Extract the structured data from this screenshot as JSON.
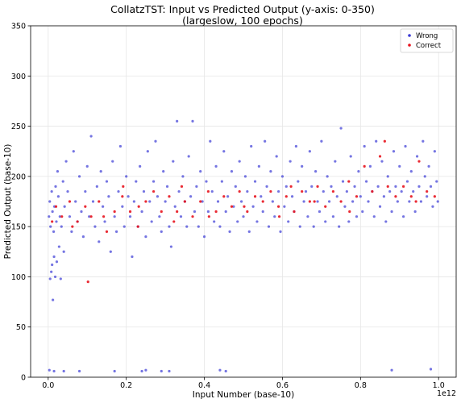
{
  "chart_data": {
    "type": "scatter",
    "title": "CollatzTST: Input vs Predicted Output (y-axis: 0-350)",
    "subtitle": "(largeslow, 100 epochs)",
    "xlabel": "Input Number (base-10)",
    "ylabel": "Predicted Output (base-10)",
    "x_offset_label": "1e12",
    "xlim": [
      -0.045,
      1.045
    ],
    "ylim": [
      0,
      350
    ],
    "x_ticks": [
      0.0,
      0.2,
      0.4,
      0.6,
      0.8,
      1.0
    ],
    "x_tick_labels": [
      "0.0",
      "0.2",
      "0.4",
      "0.6",
      "0.8",
      "1.0"
    ],
    "y_ticks": [
      0,
      50,
      100,
      150,
      200,
      250,
      300,
      350
    ],
    "y_tick_labels": [
      "0",
      "50",
      "100",
      "150",
      "200",
      "250",
      "300",
      "350"
    ],
    "grid": true,
    "legend_position": "top-right",
    "series": [
      {
        "name": "Wrong",
        "color": "#3b3bd6",
        "points": [
          [
            0.005,
            98
          ],
          [
            0.008,
            105
          ],
          [
            0.01,
            112
          ],
          [
            0.012,
            77
          ],
          [
            0.015,
            120
          ],
          [
            0.018,
            100
          ],
          [
            0.022,
            115
          ],
          [
            0.028,
            130
          ],
          [
            0.032,
            98
          ],
          [
            0.04,
            125
          ],
          [
            0.002,
            160
          ],
          [
            0.004,
            175
          ],
          [
            0.006,
            150
          ],
          [
            0.009,
            185
          ],
          [
            0.011,
            165
          ],
          [
            0.014,
            145
          ],
          [
            0.016,
            170
          ],
          [
            0.019,
            190
          ],
          [
            0.021,
            155
          ],
          [
            0.024,
            205
          ],
          [
            0.026,
            180
          ],
          [
            0.03,
            160
          ],
          [
            0.034,
            150
          ],
          [
            0.038,
            195
          ],
          [
            0.042,
            170
          ],
          [
            0.046,
            215
          ],
          [
            0.05,
            185
          ],
          [
            0.055,
            160
          ],
          [
            0.06,
            145
          ],
          [
            0.065,
            225
          ],
          [
            0.07,
            175
          ],
          [
            0.075,
            155
          ],
          [
            0.08,
            200
          ],
          [
            0.085,
            165
          ],
          [
            0.09,
            140
          ],
          [
            0.095,
            185
          ],
          [
            0.1,
            210
          ],
          [
            0.105,
            160
          ],
          [
            0.11,
            240
          ],
          [
            0.115,
            175
          ],
          [
            0.12,
            150
          ],
          [
            0.125,
            190
          ],
          [
            0.13,
            135
          ],
          [
            0.135,
            205
          ],
          [
            0.14,
            170
          ],
          [
            0.145,
            155
          ],
          [
            0.15,
            195
          ],
          [
            0.155,
            180
          ],
          [
            0.16,
            125
          ],
          [
            0.165,
            215
          ],
          [
            0.17,
            160
          ],
          [
            0.175,
            145
          ],
          [
            0.18,
            185
          ],
          [
            0.185,
            230
          ],
          [
            0.19,
            170
          ],
          [
            0.195,
            150
          ],
          [
            0.2,
            200
          ],
          [
            0.205,
            180
          ],
          [
            0.21,
            160
          ],
          [
            0.215,
            120
          ],
          [
            0.22,
            175
          ],
          [
            0.225,
            195
          ],
          [
            0.23,
            150
          ],
          [
            0.235,
            210
          ],
          [
            0.24,
            165
          ],
          [
            0.245,
            185
          ],
          [
            0.25,
            140
          ],
          [
            0.255,
            225
          ],
          [
            0.26,
            175
          ],
          [
            0.265,
            155
          ],
          [
            0.27,
            195
          ],
          [
            0.275,
            235
          ],
          [
            0.28,
            180
          ],
          [
            0.285,
            160
          ],
          [
            0.29,
            145
          ],
          [
            0.295,
            205
          ],
          [
            0.3,
            175
          ],
          [
            0.305,
            190
          ],
          [
            0.31,
            150
          ],
          [
            0.315,
            130
          ],
          [
            0.32,
            215
          ],
          [
            0.325,
            170
          ],
          [
            0.33,
            255
          ],
          [
            0.335,
            185
          ],
          [
            0.34,
            160
          ],
          [
            0.345,
            200
          ],
          [
            0.35,
            175
          ],
          [
            0.355,
            150
          ],
          [
            0.36,
            220
          ],
          [
            0.365,
            180
          ],
          [
            0.37,
            255
          ],
          [
            0.375,
            165
          ],
          [
            0.38,
            190
          ],
          [
            0.385,
            150
          ],
          [
            0.39,
            205
          ],
          [
            0.395,
            175
          ],
          [
            0.4,
            140
          ],
          [
            0.405,
            195
          ],
          [
            0.41,
            165
          ],
          [
            0.415,
            235
          ],
          [
            0.42,
            185
          ],
          [
            0.425,
            155
          ],
          [
            0.43,
            210
          ],
          [
            0.435,
            175
          ],
          [
            0.44,
            150
          ],
          [
            0.445,
            195
          ],
          [
            0.45,
            225
          ],
          [
            0.455,
            165
          ],
          [
            0.46,
            180
          ],
          [
            0.465,
            145
          ],
          [
            0.47,
            205
          ],
          [
            0.475,
            170
          ],
          [
            0.48,
            190
          ],
          [
            0.485,
            155
          ],
          [
            0.49,
            215
          ],
          [
            0.495,
            175
          ],
          [
            0.5,
            160
          ],
          [
            0.505,
            200
          ],
          [
            0.51,
            185
          ],
          [
            0.515,
            145
          ],
          [
            0.52,
            230
          ],
          [
            0.525,
            170
          ],
          [
            0.53,
            195
          ],
          [
            0.535,
            155
          ],
          [
            0.54,
            210
          ],
          [
            0.545,
            180
          ],
          [
            0.55,
            165
          ],
          [
            0.555,
            235
          ],
          [
            0.56,
            190
          ],
          [
            0.565,
            150
          ],
          [
            0.57,
            205
          ],
          [
            0.575,
            175
          ],
          [
            0.58,
            160
          ],
          [
            0.585,
            220
          ],
          [
            0.59,
            185
          ],
          [
            0.595,
            145
          ],
          [
            0.6,
            200
          ],
          [
            0.605,
            170
          ],
          [
            0.61,
            190
          ],
          [
            0.615,
            155
          ],
          [
            0.62,
            215
          ],
          [
            0.625,
            180
          ],
          [
            0.63,
            165
          ],
          [
            0.635,
            230
          ],
          [
            0.64,
            195
          ],
          [
            0.645,
            150
          ],
          [
            0.65,
            210
          ],
          [
            0.655,
            175
          ],
          [
            0.66,
            185
          ],
          [
            0.665,
            160
          ],
          [
            0.67,
            225
          ],
          [
            0.675,
            190
          ],
          [
            0.68,
            150
          ],
          [
            0.685,
            205
          ],
          [
            0.69,
            175
          ],
          [
            0.695,
            165
          ],
          [
            0.7,
            235
          ],
          [
            0.705,
            185
          ],
          [
            0.71,
            155
          ],
          [
            0.715,
            200
          ],
          [
            0.72,
            175
          ],
          [
            0.725,
            190
          ],
          [
            0.73,
            160
          ],
          [
            0.735,
            215
          ],
          [
            0.74,
            180
          ],
          [
            0.745,
            150
          ],
          [
            0.75,
            248
          ],
          [
            0.755,
            195
          ],
          [
            0.76,
            170
          ],
          [
            0.765,
            185
          ],
          [
            0.77,
            155
          ],
          [
            0.775,
            220
          ],
          [
            0.78,
            175
          ],
          [
            0.785,
            190
          ],
          [
            0.79,
            160
          ],
          [
            0.795,
            205
          ],
          [
            0.8,
            180
          ],
          [
            0.805,
            165
          ],
          [
            0.81,
            230
          ],
          [
            0.815,
            195
          ],
          [
            0.82,
            175
          ],
          [
            0.825,
            210
          ],
          [
            0.83,
            185
          ],
          [
            0.835,
            160
          ],
          [
            0.84,
            235
          ],
          [
            0.845,
            190
          ],
          [
            0.85,
            170
          ],
          [
            0.855,
            215
          ],
          [
            0.86,
            180
          ],
          [
            0.865,
            155
          ],
          [
            0.87,
            200
          ],
          [
            0.875,
            185
          ],
          [
            0.88,
            165
          ],
          [
            0.885,
            225
          ],
          [
            0.89,
            190
          ],
          [
            0.895,
            175
          ],
          [
            0.9,
            210
          ],
          [
            0.905,
            185
          ],
          [
            0.91,
            160
          ],
          [
            0.915,
            230
          ],
          [
            0.92,
            195
          ],
          [
            0.925,
            175
          ],
          [
            0.93,
            205
          ],
          [
            0.935,
            185
          ],
          [
            0.94,
            165
          ],
          [
            0.945,
            220
          ],
          [
            0.95,
            190
          ],
          [
            0.955,
            175
          ],
          [
            0.96,
            235
          ],
          [
            0.965,
            200
          ],
          [
            0.97,
            180
          ],
          [
            0.975,
            210
          ],
          [
            0.98,
            190
          ],
          [
            0.985,
            170
          ],
          [
            0.99,
            225
          ],
          [
            0.995,
            195
          ],
          [
            0.998,
            175
          ],
          [
            0.003,
            7
          ],
          [
            0.015,
            6
          ],
          [
            0.04,
            6
          ],
          [
            0.08,
            6
          ],
          [
            0.17,
            6
          ],
          [
            0.24,
            6
          ],
          [
            0.25,
            7
          ],
          [
            0.29,
            6
          ],
          [
            0.31,
            6
          ],
          [
            0.44,
            7
          ],
          [
            0.455,
            6
          ],
          [
            0.88,
            7
          ],
          [
            0.98,
            8
          ]
        ]
      },
      {
        "name": "Correct",
        "color": "#e8141e",
        "points": [
          [
            0.01,
            155
          ],
          [
            0.02,
            170
          ],
          [
            0.035,
            160
          ],
          [
            0.055,
            175
          ],
          [
            0.075,
            155
          ],
          [
            0.095,
            170
          ],
          [
            0.11,
            160
          ],
          [
            0.13,
            175
          ],
          [
            0.15,
            145
          ],
          [
            0.17,
            165
          ],
          [
            0.19,
            180
          ],
          [
            0.21,
            165
          ],
          [
            0.23,
            150
          ],
          [
            0.25,
            175
          ],
          [
            0.27,
            185
          ],
          [
            0.29,
            165
          ],
          [
            0.31,
            180
          ],
          [
            0.33,
            165
          ],
          [
            0.35,
            175
          ],
          [
            0.37,
            160
          ],
          [
            0.39,
            175
          ],
          [
            0.41,
            185
          ],
          [
            0.43,
            165
          ],
          [
            0.45,
            180
          ],
          [
            0.47,
            170
          ],
          [
            0.49,
            185
          ],
          [
            0.51,
            165
          ],
          [
            0.53,
            180
          ],
          [
            0.55,
            175
          ],
          [
            0.57,
            185
          ],
          [
            0.59,
            170
          ],
          [
            0.61,
            180
          ],
          [
            0.63,
            165
          ],
          [
            0.65,
            185
          ],
          [
            0.67,
            175
          ],
          [
            0.69,
            190
          ],
          [
            0.71,
            170
          ],
          [
            0.73,
            185
          ],
          [
            0.75,
            175
          ],
          [
            0.77,
            195
          ],
          [
            0.79,
            180
          ],
          [
            0.81,
            210
          ],
          [
            0.83,
            185
          ],
          [
            0.85,
            220
          ],
          [
            0.87,
            190
          ],
          [
            0.89,
            180
          ],
          [
            0.91,
            190
          ],
          [
            0.93,
            180
          ],
          [
            0.95,
            215
          ],
          [
            0.97,
            185
          ],
          [
            0.99,
            180
          ],
          [
            0.062,
            150
          ],
          [
            0.142,
            160
          ],
          [
            0.232,
            170
          ],
          [
            0.322,
            155
          ],
          [
            0.412,
            160
          ],
          [
            0.502,
            170
          ],
          [
            0.592,
            160
          ],
          [
            0.682,
            175
          ],
          [
            0.772,
            165
          ],
          [
            0.862,
            235
          ],
          [
            0.942,
            175
          ],
          [
            0.102,
            95
          ],
          [
            0.192,
            190
          ],
          [
            0.342,
            190
          ],
          [
            0.622,
            190
          ]
        ]
      }
    ]
  }
}
